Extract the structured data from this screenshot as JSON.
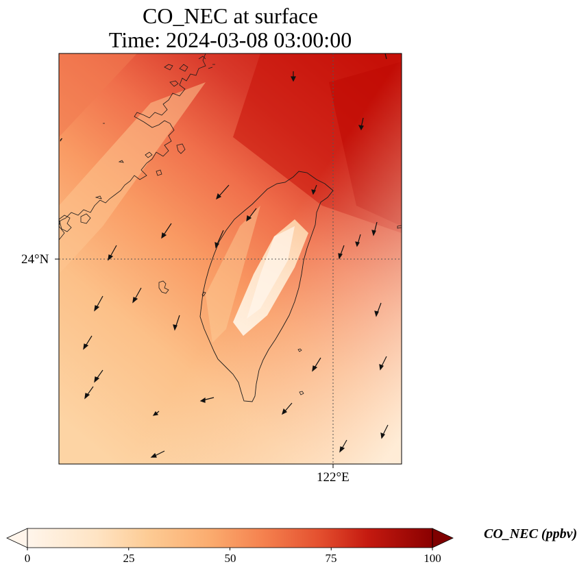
{
  "title": {
    "line1": "CO_NEC at surface",
    "line2": "Time: 2024-03-08 03:00:00"
  },
  "axes": {
    "lat_label": "24°N",
    "lon_label": "122°E"
  },
  "colorbar": {
    "label": "CO_NEC (ppbv)",
    "ticks": [
      "0",
      "25",
      "50",
      "75",
      "100"
    ],
    "tick_values": [
      0,
      25,
      50,
      75,
      100
    ],
    "range": [
      0,
      100
    ],
    "extend": "both",
    "colormap": [
      "#fff5eb",
      "#fdd9b0",
      "#fdb97d",
      "#f68c5c",
      "#e34a33",
      "#b30000",
      "#7f0000"
    ]
  },
  "colors": {
    "frame": "#000000",
    "coast": "#1a1a1a",
    "arrow": "#111111"
  },
  "map_features": [
    "taiwan-coastline",
    "china-coastline",
    "wind-vectors",
    "gridlines"
  ]
}
